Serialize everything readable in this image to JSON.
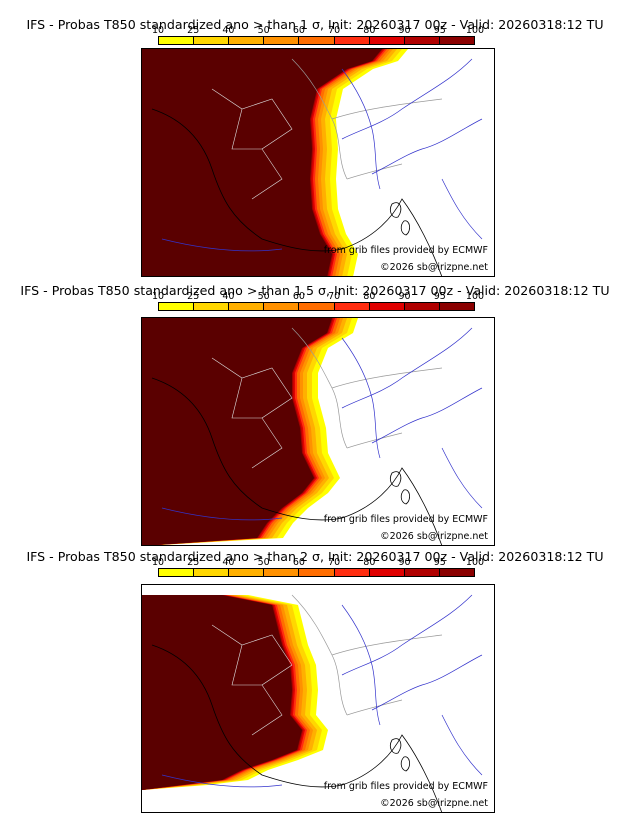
{
  "legend": {
    "ticks": [
      "10",
      "25",
      "40",
      "50",
      "60",
      "70",
      "80",
      "90",
      "95",
      "100"
    ],
    "colors": [
      "#ffff00",
      "#ffd700",
      "#ffb000",
      "#ff9100",
      "#ff6d00",
      "#ff2d10",
      "#e00000",
      "#b00000",
      "#8a0000",
      "#5a0000"
    ]
  },
  "map": {
    "background": "#ffffff",
    "river_color": "#3333cc",
    "border_color": "#999999",
    "coast_color": "#000000"
  },
  "panels": [
    {
      "title": "IFS - Probas T850  standardized ano > than 1 σ, Init: 20260317 00z - Valid: 20260318:12 TU",
      "source": "from grib files provided by ECMWF",
      "copyright": "©2026 sb@irizpne.net"
    },
    {
      "title": "IFS - Probas T850  standardized ano > than 1.5 σ, Init: 20260317 00z - Valid: 20260318:12 TU",
      "source": "from grib files provided by ECMWF",
      "copyright": "©2026 sb@irizpne.net"
    },
    {
      "title": "IFS - Probas T850  standardized ano > than 2 σ, Init: 20260317 00z - Valid: 20260318:12 TU",
      "source": "from grib files provided by ECMWF",
      "copyright": "©2026 sb@irizpne.net"
    }
  ]
}
